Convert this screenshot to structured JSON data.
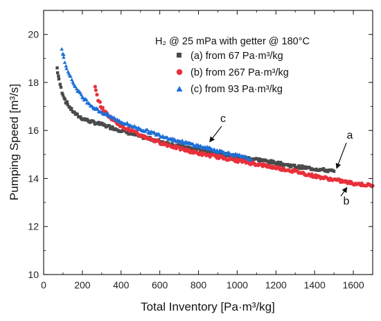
{
  "chart_data": {
    "type": "scatter",
    "title": "",
    "xlabel": "Total Inventory [Pa·m³/kg]",
    "ylabel": "Pumping Speed [m³/s]",
    "xlim": [
      0,
      1700
    ],
    "ylim": [
      10,
      21
    ],
    "xticks": [
      0,
      200,
      400,
      600,
      800,
      1000,
      1200,
      1400,
      1600
    ],
    "yticks": [
      10,
      12,
      14,
      16,
      18,
      20
    ],
    "grid": false,
    "legend_position": "top-right",
    "legend_title": "H₂ @ 25 mPa with getter @ 180°C",
    "series": [
      {
        "name": "(a) from 67 Pa·m³/kg",
        "marker": "square",
        "color": "#4a4a4a",
        "points": [
          [
            70,
            18.6
          ],
          [
            80,
            18.1
          ],
          [
            95,
            17.6
          ],
          [
            115,
            17.2
          ],
          [
            140,
            16.9
          ],
          [
            170,
            16.65
          ],
          [
            200,
            16.5
          ],
          [
            250,
            16.35
          ],
          [
            300,
            16.25
          ],
          [
            400,
            16.0
          ],
          [
            500,
            15.75
          ],
          [
            600,
            15.55
          ],
          [
            700,
            15.35
          ],
          [
            800,
            15.2
          ],
          [
            900,
            15.05
          ],
          [
            1000,
            14.9
          ],
          [
            1100,
            14.8
          ],
          [
            1200,
            14.65
          ],
          [
            1300,
            14.5
          ],
          [
            1400,
            14.4
          ],
          [
            1500,
            14.3
          ]
        ]
      },
      {
        "name": "(b) from 267 Pa·m³/kg",
        "marker": "circle",
        "color": "#e8303a",
        "points": [
          [
            265,
            17.8
          ],
          [
            280,
            17.3
          ],
          [
            300,
            16.95
          ],
          [
            330,
            16.65
          ],
          [
            360,
            16.45
          ],
          [
            400,
            16.2
          ],
          [
            450,
            16.0
          ],
          [
            500,
            15.8
          ],
          [
            600,
            15.5
          ],
          [
            700,
            15.25
          ],
          [
            800,
            15.05
          ],
          [
            900,
            14.9
          ],
          [
            1000,
            14.75
          ],
          [
            1100,
            14.6
          ],
          [
            1200,
            14.45
          ],
          [
            1300,
            14.3
          ],
          [
            1400,
            14.1
          ],
          [
            1500,
            13.95
          ],
          [
            1600,
            13.8
          ],
          [
            1700,
            13.7
          ]
        ]
      },
      {
        "name": "(c) from 93 Pa·m³/kg",
        "marker": "triangle",
        "color": "#1f6fd6",
        "points": [
          [
            95,
            19.35
          ],
          [
            105,
            19.0
          ],
          [
            120,
            18.6
          ],
          [
            140,
            18.2
          ],
          [
            165,
            17.8
          ],
          [
            200,
            17.4
          ],
          [
            250,
            17.0
          ],
          [
            300,
            16.75
          ],
          [
            350,
            16.55
          ],
          [
            400,
            16.35
          ],
          [
            500,
            16.05
          ],
          [
            600,
            15.8
          ],
          [
            700,
            15.55
          ],
          [
            800,
            15.35
          ],
          [
            900,
            15.15
          ],
          [
            1000,
            14.95
          ],
          [
            1070,
            14.8
          ]
        ]
      }
    ],
    "annotations": [
      {
        "label": "a",
        "x": 1515,
        "y": 14.45
      },
      {
        "label": "b",
        "x": 1565,
        "y": 13.6
      },
      {
        "label": "c",
        "x": 860,
        "y": 15.55
      }
    ]
  }
}
